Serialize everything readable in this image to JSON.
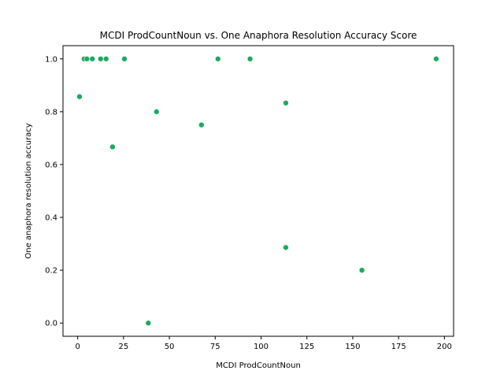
{
  "chart_data": {
    "type": "scatter",
    "title": "MCDI ProdCountNoun vs. One Anaphora Resolution Accuracy Score",
    "xlabel": "MCDI ProdCountNoun",
    "ylabel": "One anaphora resolution accuracy",
    "xlim": [
      -8,
      205
    ],
    "ylim": [
      -0.05,
      1.05
    ],
    "xticks": [
      0,
      25,
      50,
      75,
      100,
      125,
      150,
      175,
      200
    ],
    "yticks": [
      0.0,
      0.2,
      0.4,
      0.6,
      0.8,
      1.0
    ],
    "xtick_labels": [
      "0",
      "25",
      "50",
      "75",
      "100",
      "125",
      "150",
      "175",
      "200"
    ],
    "ytick_labels": [
      "0.0",
      "0.2",
      "0.4",
      "0.6",
      "0.8",
      "1.0"
    ],
    "grid": false,
    "marker_color": "#1aab5f",
    "points": [
      {
        "x": 1,
        "y": 0.857
      },
      {
        "x": 3.5,
        "y": 1.0
      },
      {
        "x": 5,
        "y": 1.0
      },
      {
        "x": 8,
        "y": 1.0
      },
      {
        "x": 12.5,
        "y": 1.0
      },
      {
        "x": 15.5,
        "y": 1.0
      },
      {
        "x": 19,
        "y": 0.667
      },
      {
        "x": 25.5,
        "y": 1.0
      },
      {
        "x": 38.5,
        "y": 0.0
      },
      {
        "x": 43,
        "y": 0.8
      },
      {
        "x": 67.5,
        "y": 0.75
      },
      {
        "x": 76.5,
        "y": 1.0
      },
      {
        "x": 94,
        "y": 1.0
      },
      {
        "x": 113.5,
        "y": 0.833
      },
      {
        "x": 113.5,
        "y": 0.286
      },
      {
        "x": 155,
        "y": 0.2
      },
      {
        "x": 195.5,
        "y": 1.0
      }
    ]
  }
}
